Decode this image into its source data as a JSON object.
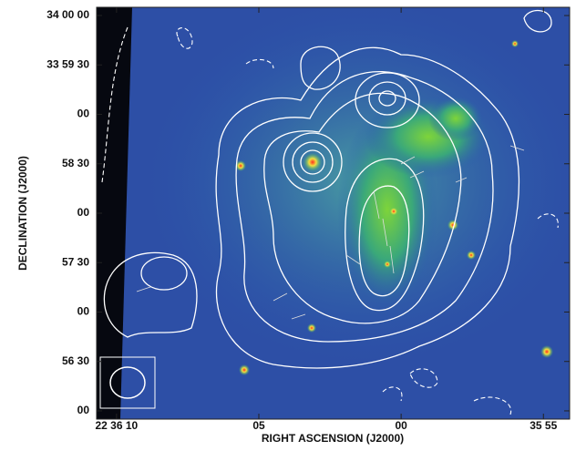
{
  "chart_data": {
    "type": "image",
    "xlabel": "RIGHT ASCENSION (J2000)",
    "ylabel": "DECLINATION (J2000)",
    "xlim": [
      81370.7,
      81354.08
    ],
    "ylim": [
      122155,
      122405
    ],
    "xticks": [
      {
        "value": 81370,
        "label": "22 36 10"
      },
      {
        "value": 81365,
        "label": "05"
      },
      {
        "value": 81360,
        "label": "00"
      },
      {
        "value": 81355,
        "label": "35 55"
      }
    ],
    "yticks": [
      {
        "value": 122400,
        "label": "34 00 00"
      },
      {
        "value": 122370,
        "label": "33 59 30"
      },
      {
        "value": 122340,
        "label": "00"
      },
      {
        "value": 122310,
        "label": "58 30"
      },
      {
        "value": 122280,
        "label": "00"
      },
      {
        "value": 122250,
        "label": "57 30"
      },
      {
        "value": 122220,
        "label": "00"
      },
      {
        "value": 122190,
        "label": "56 30"
      },
      {
        "value": 122160,
        "label": "00"
      }
    ]
  }
}
